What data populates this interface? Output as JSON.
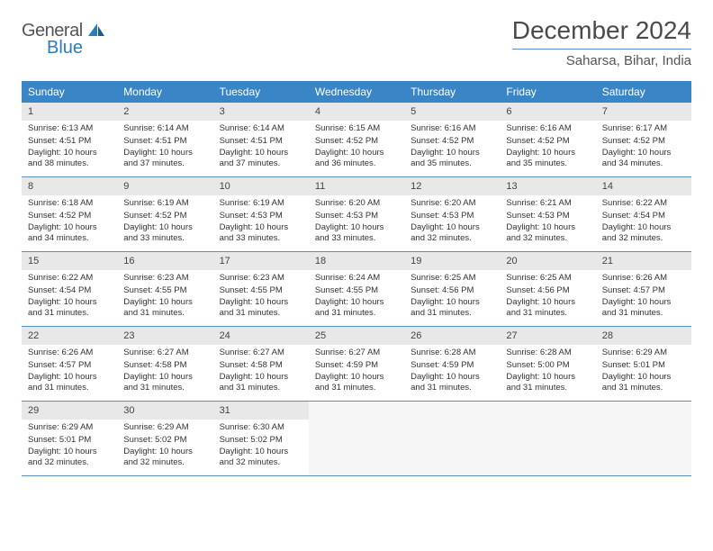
{
  "logo": {
    "general": "General",
    "blue": "Blue"
  },
  "title": "December 2024",
  "location": "Saharsa, Bihar, India",
  "colors": {
    "header_bg": "#3a85c6",
    "header_text": "#ffffff",
    "daynum_bg": "#e8e8e8",
    "border": "#5a8fc0",
    "logo_blue": "#2b7bbf"
  },
  "day_headers": [
    "Sunday",
    "Monday",
    "Tuesday",
    "Wednesday",
    "Thursday",
    "Friday",
    "Saturday"
  ],
  "weeks": [
    [
      {
        "num": "1",
        "sunrise": "Sunrise: 6:13 AM",
        "sunset": "Sunset: 4:51 PM",
        "daylight": "Daylight: 10 hours and 38 minutes."
      },
      {
        "num": "2",
        "sunrise": "Sunrise: 6:14 AM",
        "sunset": "Sunset: 4:51 PM",
        "daylight": "Daylight: 10 hours and 37 minutes."
      },
      {
        "num": "3",
        "sunrise": "Sunrise: 6:14 AM",
        "sunset": "Sunset: 4:51 PM",
        "daylight": "Daylight: 10 hours and 37 minutes."
      },
      {
        "num": "4",
        "sunrise": "Sunrise: 6:15 AM",
        "sunset": "Sunset: 4:52 PM",
        "daylight": "Daylight: 10 hours and 36 minutes."
      },
      {
        "num": "5",
        "sunrise": "Sunrise: 6:16 AM",
        "sunset": "Sunset: 4:52 PM",
        "daylight": "Daylight: 10 hours and 35 minutes."
      },
      {
        "num": "6",
        "sunrise": "Sunrise: 6:16 AM",
        "sunset": "Sunset: 4:52 PM",
        "daylight": "Daylight: 10 hours and 35 minutes."
      },
      {
        "num": "7",
        "sunrise": "Sunrise: 6:17 AM",
        "sunset": "Sunset: 4:52 PM",
        "daylight": "Daylight: 10 hours and 34 minutes."
      }
    ],
    [
      {
        "num": "8",
        "sunrise": "Sunrise: 6:18 AM",
        "sunset": "Sunset: 4:52 PM",
        "daylight": "Daylight: 10 hours and 34 minutes."
      },
      {
        "num": "9",
        "sunrise": "Sunrise: 6:19 AM",
        "sunset": "Sunset: 4:52 PM",
        "daylight": "Daylight: 10 hours and 33 minutes."
      },
      {
        "num": "10",
        "sunrise": "Sunrise: 6:19 AM",
        "sunset": "Sunset: 4:53 PM",
        "daylight": "Daylight: 10 hours and 33 minutes."
      },
      {
        "num": "11",
        "sunrise": "Sunrise: 6:20 AM",
        "sunset": "Sunset: 4:53 PM",
        "daylight": "Daylight: 10 hours and 33 minutes."
      },
      {
        "num": "12",
        "sunrise": "Sunrise: 6:20 AM",
        "sunset": "Sunset: 4:53 PM",
        "daylight": "Daylight: 10 hours and 32 minutes."
      },
      {
        "num": "13",
        "sunrise": "Sunrise: 6:21 AM",
        "sunset": "Sunset: 4:53 PM",
        "daylight": "Daylight: 10 hours and 32 minutes."
      },
      {
        "num": "14",
        "sunrise": "Sunrise: 6:22 AM",
        "sunset": "Sunset: 4:54 PM",
        "daylight": "Daylight: 10 hours and 32 minutes."
      }
    ],
    [
      {
        "num": "15",
        "sunrise": "Sunrise: 6:22 AM",
        "sunset": "Sunset: 4:54 PM",
        "daylight": "Daylight: 10 hours and 31 minutes."
      },
      {
        "num": "16",
        "sunrise": "Sunrise: 6:23 AM",
        "sunset": "Sunset: 4:55 PM",
        "daylight": "Daylight: 10 hours and 31 minutes."
      },
      {
        "num": "17",
        "sunrise": "Sunrise: 6:23 AM",
        "sunset": "Sunset: 4:55 PM",
        "daylight": "Daylight: 10 hours and 31 minutes."
      },
      {
        "num": "18",
        "sunrise": "Sunrise: 6:24 AM",
        "sunset": "Sunset: 4:55 PM",
        "daylight": "Daylight: 10 hours and 31 minutes."
      },
      {
        "num": "19",
        "sunrise": "Sunrise: 6:25 AM",
        "sunset": "Sunset: 4:56 PM",
        "daylight": "Daylight: 10 hours and 31 minutes."
      },
      {
        "num": "20",
        "sunrise": "Sunrise: 6:25 AM",
        "sunset": "Sunset: 4:56 PM",
        "daylight": "Daylight: 10 hours and 31 minutes."
      },
      {
        "num": "21",
        "sunrise": "Sunrise: 6:26 AM",
        "sunset": "Sunset: 4:57 PM",
        "daylight": "Daylight: 10 hours and 31 minutes."
      }
    ],
    [
      {
        "num": "22",
        "sunrise": "Sunrise: 6:26 AM",
        "sunset": "Sunset: 4:57 PM",
        "daylight": "Daylight: 10 hours and 31 minutes."
      },
      {
        "num": "23",
        "sunrise": "Sunrise: 6:27 AM",
        "sunset": "Sunset: 4:58 PM",
        "daylight": "Daylight: 10 hours and 31 minutes."
      },
      {
        "num": "24",
        "sunrise": "Sunrise: 6:27 AM",
        "sunset": "Sunset: 4:58 PM",
        "daylight": "Daylight: 10 hours and 31 minutes."
      },
      {
        "num": "25",
        "sunrise": "Sunrise: 6:27 AM",
        "sunset": "Sunset: 4:59 PM",
        "daylight": "Daylight: 10 hours and 31 minutes."
      },
      {
        "num": "26",
        "sunrise": "Sunrise: 6:28 AM",
        "sunset": "Sunset: 4:59 PM",
        "daylight": "Daylight: 10 hours and 31 minutes."
      },
      {
        "num": "27",
        "sunrise": "Sunrise: 6:28 AM",
        "sunset": "Sunset: 5:00 PM",
        "daylight": "Daylight: 10 hours and 31 minutes."
      },
      {
        "num": "28",
        "sunrise": "Sunrise: 6:29 AM",
        "sunset": "Sunset: 5:01 PM",
        "daylight": "Daylight: 10 hours and 31 minutes."
      }
    ],
    [
      {
        "num": "29",
        "sunrise": "Sunrise: 6:29 AM",
        "sunset": "Sunset: 5:01 PM",
        "daylight": "Daylight: 10 hours and 32 minutes."
      },
      {
        "num": "30",
        "sunrise": "Sunrise: 6:29 AM",
        "sunset": "Sunset: 5:02 PM",
        "daylight": "Daylight: 10 hours and 32 minutes."
      },
      {
        "num": "31",
        "sunrise": "Sunrise: 6:30 AM",
        "sunset": "Sunset: 5:02 PM",
        "daylight": "Daylight: 10 hours and 32 minutes."
      },
      null,
      null,
      null,
      null
    ]
  ]
}
